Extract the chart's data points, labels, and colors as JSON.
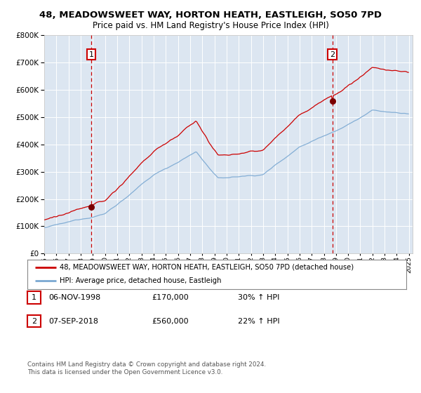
{
  "title": "48, MEADOWSWEET WAY, HORTON HEATH, EASTLEIGH, SO50 7PD",
  "subtitle": "Price paid vs. HM Land Registry's House Price Index (HPI)",
  "legend_property": "48, MEADOWSWEET WAY, HORTON HEATH, EASTLEIGH, SO50 7PD (detached house)",
  "legend_hpi": "HPI: Average price, detached house, Eastleigh",
  "purchase1_date": "06-NOV-1998",
  "purchase1_price": 170000,
  "purchase2_date": "07-SEP-2018",
  "purchase2_price": 560000,
  "purchase1_pct": "30% ↑ HPI",
  "purchase2_pct": "22% ↑ HPI",
  "footnote1": "Contains HM Land Registry data © Crown copyright and database right 2024.",
  "footnote2": "This data is licensed under the Open Government Licence v3.0.",
  "ylim": [
    0,
    800000
  ],
  "yticks": [
    0,
    100000,
    200000,
    300000,
    400000,
    500000,
    600000,
    700000,
    800000
  ],
  "bg_color": "#dce6f1",
  "grid_color": "#ffffff",
  "red_color": "#cc0000",
  "blue_color": "#7aa8d2",
  "marker_color": "#7a0000",
  "vline_color": "#cc0000",
  "box_edge_color": "#cc0000"
}
